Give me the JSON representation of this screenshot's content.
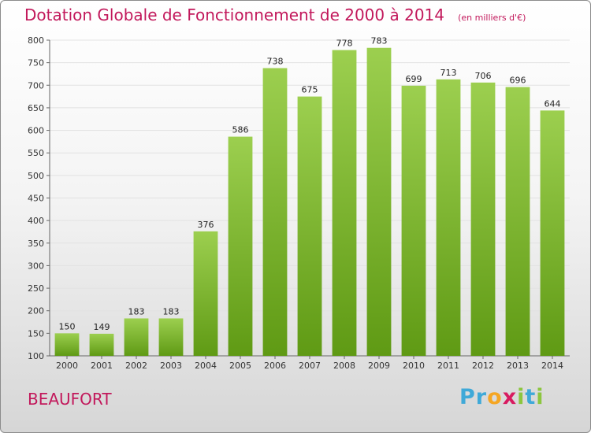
{
  "title": "Dotation Globale de Fonctionnement de 2000 à 2014",
  "subtitle": "(en milliers d'€)",
  "town": "BEAUFORT",
  "logo": {
    "p": "P",
    "r": "r",
    "o": "o",
    "x": "x",
    "i1": "i",
    "t": "t",
    "i2": "i"
  },
  "colors": {
    "title": "#c2185b",
    "bar_top": "#9ccf4f",
    "bar_bottom": "#5f9a14"
  },
  "chart_data": {
    "type": "bar",
    "categories": [
      "2000",
      "2001",
      "2002",
      "2003",
      "2004",
      "2005",
      "2006",
      "2007",
      "2008",
      "2009",
      "2010",
      "2011",
      "2012",
      "2013",
      "2014"
    ],
    "values": [
      150,
      149,
      183,
      183,
      376,
      586,
      738,
      675,
      778,
      783,
      699,
      713,
      706,
      696,
      644
    ],
    "ylim": [
      100,
      800
    ],
    "yticks": [
      100,
      150,
      200,
      250,
      300,
      350,
      400,
      450,
      500,
      550,
      600,
      650,
      700,
      750,
      800
    ],
    "grid": true,
    "data_labels": true
  }
}
